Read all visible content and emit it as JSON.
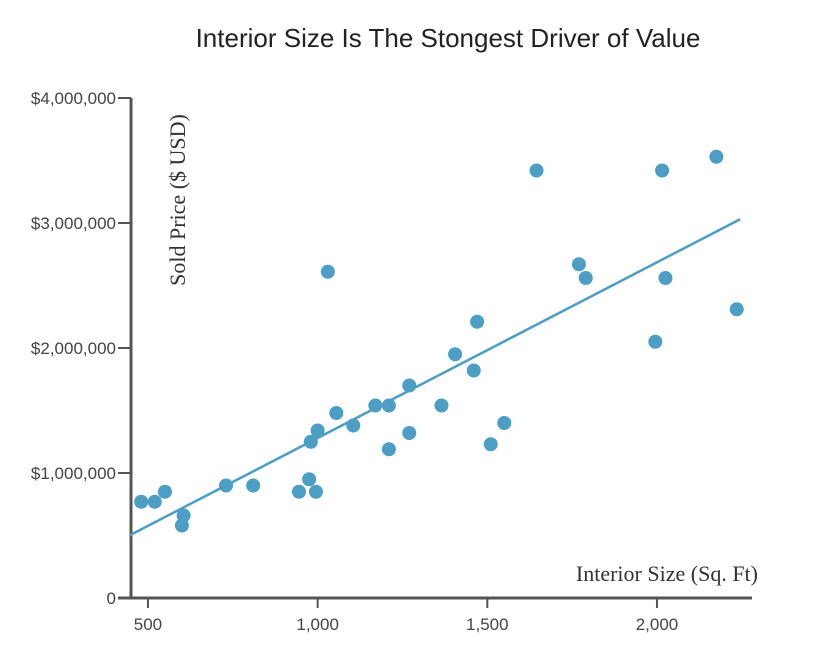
{
  "chart_data": {
    "type": "scatter",
    "title": "Interior Size Is The Stongest Driver of Value",
    "xlabel": "Interior Size (Sq. Ft)",
    "ylabel": "Sold Price ($ USD)",
    "xlim": [
      450,
      2280
    ],
    "ylim": [
      0,
      4000000
    ],
    "x_ticks": [
      500,
      1000,
      1500,
      2000
    ],
    "x_tick_labels": [
      "500",
      "1,000",
      "1,500",
      "2,000"
    ],
    "y_ticks": [
      0,
      1000000,
      2000000,
      3000000,
      4000000
    ],
    "y_tick_labels": [
      "0",
      "$1,000,000",
      "$2,000,000",
      "$3,000,000",
      "$4,000,000"
    ],
    "color": "#4c9ec4",
    "points": [
      {
        "x": 480,
        "y": 770000
      },
      {
        "x": 520,
        "y": 770000
      },
      {
        "x": 550,
        "y": 850000
      },
      {
        "x": 600,
        "y": 580000
      },
      {
        "x": 605,
        "y": 660000
      },
      {
        "x": 730,
        "y": 900000
      },
      {
        "x": 810,
        "y": 900000
      },
      {
        "x": 945,
        "y": 850000
      },
      {
        "x": 975,
        "y": 950000
      },
      {
        "x": 980,
        "y": 1250000
      },
      {
        "x": 995,
        "y": 850000
      },
      {
        "x": 1000,
        "y": 1340000
      },
      {
        "x": 1030,
        "y": 2610000
      },
      {
        "x": 1055,
        "y": 1480000
      },
      {
        "x": 1105,
        "y": 1380000
      },
      {
        "x": 1170,
        "y": 1540000
      },
      {
        "x": 1210,
        "y": 1540000
      },
      {
        "x": 1210,
        "y": 1190000
      },
      {
        "x": 1270,
        "y": 1700000
      },
      {
        "x": 1270,
        "y": 1320000
      },
      {
        "x": 1365,
        "y": 1540000
      },
      {
        "x": 1405,
        "y": 1950000
      },
      {
        "x": 1460,
        "y": 1820000
      },
      {
        "x": 1470,
        "y": 2210000
      },
      {
        "x": 1510,
        "y": 1230000
      },
      {
        "x": 1550,
        "y": 1400000
      },
      {
        "x": 1645,
        "y": 3420000
      },
      {
        "x": 1770,
        "y": 2670000
      },
      {
        "x": 1790,
        "y": 2560000
      },
      {
        "x": 1995,
        "y": 2050000
      },
      {
        "x": 2015,
        "y": 3420000
      },
      {
        "x": 2025,
        "y": 2560000
      },
      {
        "x": 2175,
        "y": 3530000
      },
      {
        "x": 2235,
        "y": 2310000
      }
    ],
    "trendline": {
      "x": [
        445,
        2245
      ],
      "y": [
        500000,
        3030000
      ]
    },
    "grid": false,
    "legend": "none"
  }
}
